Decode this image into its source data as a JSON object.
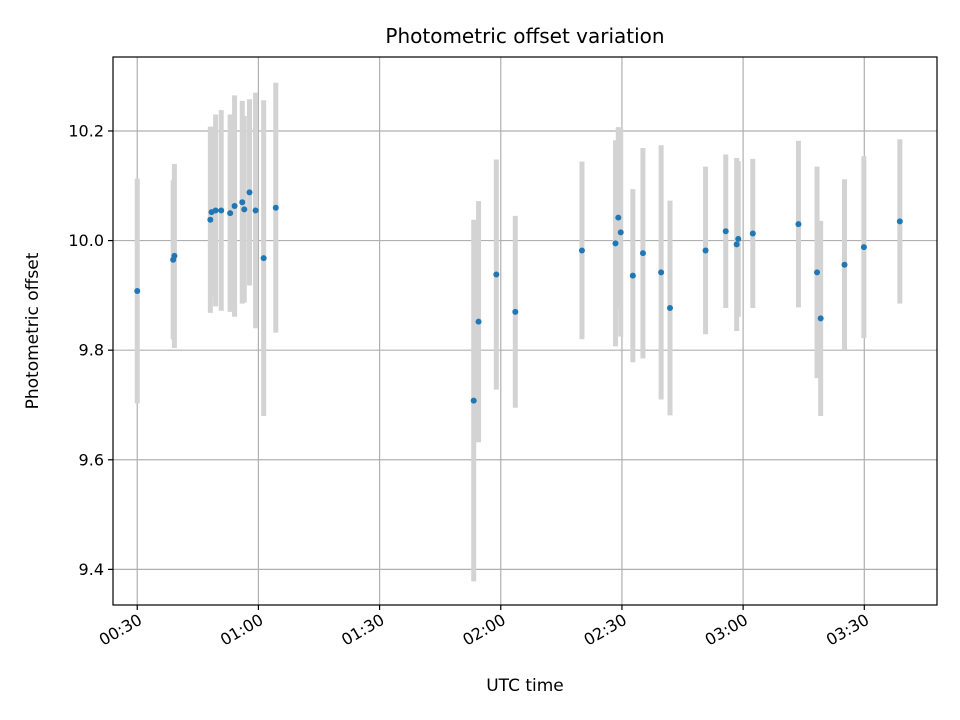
{
  "chart_data": {
    "type": "scatter",
    "title": "Photometric offset variation",
    "xlabel": "UTC time",
    "ylabel": "Photometric offset",
    "xlim": [
      "00:24",
      "03:48"
    ],
    "ylim": [
      9.335,
      10.335
    ],
    "x_ticks": [
      "00:30",
      "01:00",
      "01:30",
      "02:00",
      "02:30",
      "03:00",
      "03:30"
    ],
    "y_ticks": [
      "9.4",
      "9.6",
      "9.8",
      "10.0",
      "10.2"
    ],
    "grid": true,
    "colors": {
      "point": "#1f77b4",
      "errorbar": "#d3d3d3",
      "grid": "#b0b0b0"
    },
    "series": [
      {
        "points": [
          {
            "x": "00:30:00",
            "y": 9.908,
            "err": 0.205
          },
          {
            "x": "00:38:54",
            "y": 9.965,
            "err": 0.145
          },
          {
            "x": "00:39:12",
            "y": 9.972,
            "err": 0.168
          },
          {
            "x": "00:48:06",
            "y": 10.038,
            "err": 0.17
          },
          {
            "x": "00:48:24",
            "y": 10.052,
            "err": 0.155
          },
          {
            "x": "00:49:24",
            "y": 10.055,
            "err": 0.175
          },
          {
            "x": "00:50:48",
            "y": 10.055,
            "err": 0.183
          },
          {
            "x": "00:53:00",
            "y": 10.05,
            "err": 0.18
          },
          {
            "x": "00:54:06",
            "y": 10.063,
            "err": 0.202
          },
          {
            "x": "00:56:00",
            "y": 10.07,
            "err": 0.185
          },
          {
            "x": "00:56:30",
            "y": 10.057,
            "err": 0.17
          },
          {
            "x": "00:57:48",
            "y": 10.088,
            "err": 0.17
          },
          {
            "x": "00:59:18",
            "y": 10.055,
            "err": 0.215
          },
          {
            "x": "01:01:18",
            "y": 9.968,
            "err": 0.288
          },
          {
            "x": "01:04:18",
            "y": 10.06,
            "err": 0.228
          },
          {
            "x": "01:53:18",
            "y": 9.708,
            "err": 0.33
          },
          {
            "x": "01:54:30",
            "y": 9.852,
            "err": 0.22
          },
          {
            "x": "01:58:54",
            "y": 9.938,
            "err": 0.21
          },
          {
            "x": "02:03:36",
            "y": 9.87,
            "err": 0.175
          },
          {
            "x": "02:20:06",
            "y": 9.982,
            "err": 0.162
          },
          {
            "x": "02:28:24",
            "y": 9.995,
            "err": 0.188
          },
          {
            "x": "02:29:06",
            "y": 10.042,
            "err": 0.165
          },
          {
            "x": "02:29:42",
            "y": 10.015,
            "err": 0.19
          },
          {
            "x": "02:32:42",
            "y": 9.936,
            "err": 0.158
          },
          {
            "x": "02:35:12",
            "y": 9.977,
            "err": 0.192
          },
          {
            "x": "02:39:42",
            "y": 9.942,
            "err": 0.232
          },
          {
            "x": "02:41:54",
            "y": 9.877,
            "err": 0.196
          },
          {
            "x": "02:50:42",
            "y": 9.982,
            "err": 0.153
          },
          {
            "x": "02:55:42",
            "y": 10.017,
            "err": 0.14
          },
          {
            "x": "02:58:24",
            "y": 9.993,
            "err": 0.158
          },
          {
            "x": "02:58:48",
            "y": 10.003,
            "err": 0.142
          },
          {
            "x": "03:02:24",
            "y": 10.013,
            "err": 0.136
          },
          {
            "x": "03:13:42",
            "y": 10.03,
            "err": 0.152
          },
          {
            "x": "03:18:18",
            "y": 9.942,
            "err": 0.193
          },
          {
            "x": "03:19:12",
            "y": 9.858,
            "err": 0.178
          },
          {
            "x": "03:25:06",
            "y": 9.956,
            "err": 0.156
          },
          {
            "x": "03:29:54",
            "y": 9.988,
            "err": 0.166
          },
          {
            "x": "03:38:48",
            "y": 10.035,
            "err": 0.15
          }
        ]
      }
    ]
  }
}
